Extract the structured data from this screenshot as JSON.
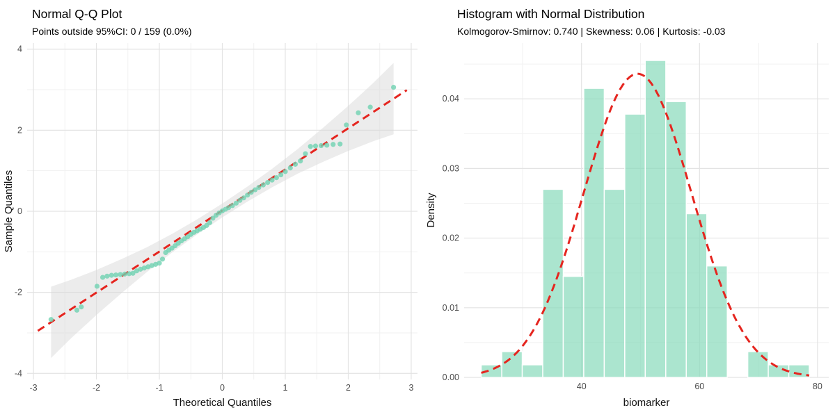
{
  "figure": {
    "background": "#ffffff",
    "point_color": "#6fd2b1",
    "bar_color": "#8adbbc",
    "line_color": "#e5251f",
    "band_color": "#d9d9d9",
    "grid_major_color": "#e3e3e3",
    "grid_minor_color": "#f1f1f1"
  },
  "chart_data": [
    {
      "type": "scatter",
      "title": "Normal Q-Q Plot",
      "subtitle": "Points outside 95%CI: 0 / 159 (0.0%)",
      "xlabel": "Theoretical Quantiles",
      "ylabel": "Sample Quantiles",
      "n_points_total": 159,
      "points_outside_ci": 0,
      "xlim": [
        -3.1,
        3.1
      ],
      "ylim": [
        -4.15,
        4.15
      ],
      "x_major_ticks": [
        -3,
        -2,
        -1,
        0,
        1,
        2,
        3
      ],
      "x_minor_ticks": [
        -2.5,
        -1.5,
        -0.5,
        0.5,
        1.5,
        2.5
      ],
      "y_major_ticks": [
        -4,
        -2,
        0,
        2,
        4
      ],
      "y_minor_ticks": [
        -3,
        -1,
        1,
        3
      ],
      "reference_line": {
        "x1": -2.93,
        "y1": -2.95,
        "x2": 2.93,
        "y2": 2.99,
        "style": "dashed"
      },
      "confidence_band": [
        [
          -2.72,
          -3.62,
          -1.86
        ],
        [
          -2.4,
          -3.13,
          -1.69
        ],
        [
          -2.0,
          -2.56,
          -1.45
        ],
        [
          -1.6,
          -2.02,
          -1.18
        ],
        [
          -1.2,
          -1.5,
          -0.89
        ],
        [
          -0.8,
          -1.02,
          -0.56
        ],
        [
          -0.4,
          -0.57,
          -0.2
        ],
        [
          0.0,
          -0.15,
          0.19
        ],
        [
          0.4,
          0.24,
          0.61
        ],
        [
          0.8,
          0.6,
          1.06
        ],
        [
          1.2,
          0.93,
          1.54
        ],
        [
          1.6,
          1.22,
          2.06
        ],
        [
          2.0,
          1.49,
          2.6
        ],
        [
          2.4,
          1.73,
          3.17
        ],
        [
          2.72,
          1.9,
          3.66
        ]
      ],
      "points": [
        [
          -2.72,
          -2.67
        ],
        [
          -2.31,
          -2.44
        ],
        [
          -2.24,
          -2.36
        ],
        [
          -1.99,
          -1.85
        ],
        [
          -1.9,
          -1.63
        ],
        [
          -1.83,
          -1.6
        ],
        [
          -1.76,
          -1.58
        ],
        [
          -1.69,
          -1.57
        ],
        [
          -1.62,
          -1.56
        ],
        [
          -1.55,
          -1.55
        ],
        [
          -1.48,
          -1.54
        ],
        [
          -1.42,
          -1.53
        ],
        [
          -1.36,
          -1.47
        ],
        [
          -1.3,
          -1.43
        ],
        [
          -1.24,
          -1.4
        ],
        [
          -1.18,
          -1.37
        ],
        [
          -1.12,
          -1.34
        ],
        [
          -1.06,
          -1.31
        ],
        [
          -1.0,
          -1.28
        ],
        [
          -0.95,
          -1.18
        ],
        [
          -0.9,
          -1.02
        ],
        [
          -0.85,
          -0.96
        ],
        [
          -0.8,
          -0.91
        ],
        [
          -0.75,
          -0.85
        ],
        [
          -0.7,
          -0.79
        ],
        [
          -0.65,
          -0.73
        ],
        [
          -0.6,
          -0.68
        ],
        [
          -0.55,
          -0.63
        ],
        [
          -0.5,
          -0.57
        ],
        [
          -0.45,
          -0.52
        ],
        [
          -0.4,
          -0.48
        ],
        [
          -0.35,
          -0.44
        ],
        [
          -0.3,
          -0.4
        ],
        [
          -0.25,
          -0.35
        ],
        [
          -0.2,
          -0.28
        ],
        [
          -0.15,
          -0.17
        ],
        [
          -0.1,
          -0.1
        ],
        [
          -0.05,
          -0.04
        ],
        [
          0.0,
          0.01
        ],
        [
          0.05,
          0.05
        ],
        [
          0.1,
          0.09
        ],
        [
          0.16,
          0.14
        ],
        [
          0.22,
          0.2
        ],
        [
          0.28,
          0.27
        ],
        [
          0.34,
          0.33
        ],
        [
          0.4,
          0.4
        ],
        [
          0.46,
          0.47
        ],
        [
          0.52,
          0.53
        ],
        [
          0.58,
          0.59
        ],
        [
          0.65,
          0.65
        ],
        [
          0.72,
          0.71
        ],
        [
          0.79,
          0.77
        ],
        [
          0.86,
          0.83
        ],
        [
          0.93,
          0.9
        ],
        [
          1.0,
          0.98
        ],
        [
          1.08,
          1.07
        ],
        [
          1.16,
          1.16
        ],
        [
          1.24,
          1.24
        ],
        [
          1.32,
          1.42
        ],
        [
          1.4,
          1.6
        ],
        [
          1.48,
          1.61
        ],
        [
          1.57,
          1.62
        ],
        [
          1.66,
          1.63
        ],
        [
          1.76,
          1.65
        ],
        [
          1.87,
          1.66
        ],
        [
          1.97,
          2.13
        ],
        [
          2.16,
          2.43
        ],
        [
          2.35,
          2.57
        ],
        [
          2.72,
          3.06
        ]
      ]
    },
    {
      "type": "histogram",
      "title": "Histogram with Normal Distribution",
      "subtitle": "Kolmogorov-Smirnov: 0.740 | Skewness: 0.06 | Kurtosis: -0.03",
      "xlabel": "biomarker",
      "ylabel": "Density",
      "ks_pvalue": 0.74,
      "skewness": 0.06,
      "kurtosis": -0.03,
      "xlim": [
        20.1,
        81.9
      ],
      "ylim": [
        0,
        0.048
      ],
      "x_major_ticks": [
        40,
        60,
        80
      ],
      "x_minor_ticks": [
        30,
        50,
        70
      ],
      "y_major_ticks": [
        "0.00",
        "0.01",
        "0.02",
        "0.03",
        "0.04"
      ],
      "y_major_values": [
        0,
        0.01,
        0.02,
        0.03,
        0.04
      ],
      "y_minor_values": [
        0.005,
        0.015,
        0.025,
        0.035,
        0.045
      ],
      "bin_edges": [
        23.0,
        26.48,
        29.95,
        33.43,
        36.9,
        40.38,
        43.85,
        47.33,
        50.8,
        54.28,
        57.75,
        61.23,
        64.7,
        68.18,
        71.65,
        75.13,
        78.6
      ],
      "densities": [
        0.0018,
        0.0037,
        0.0018,
        0.027,
        0.0145,
        0.0415,
        0.027,
        0.0378,
        0.0455,
        0.0396,
        0.0235,
        0.016,
        0,
        0.0037,
        0.0018,
        0.0018
      ],
      "normal_curve": {
        "mean": 49.5,
        "sd": 9.15,
        "x_range": [
          23.0,
          78.6
        ],
        "peak_density": 0.0436,
        "style": "dashed"
      }
    }
  ]
}
